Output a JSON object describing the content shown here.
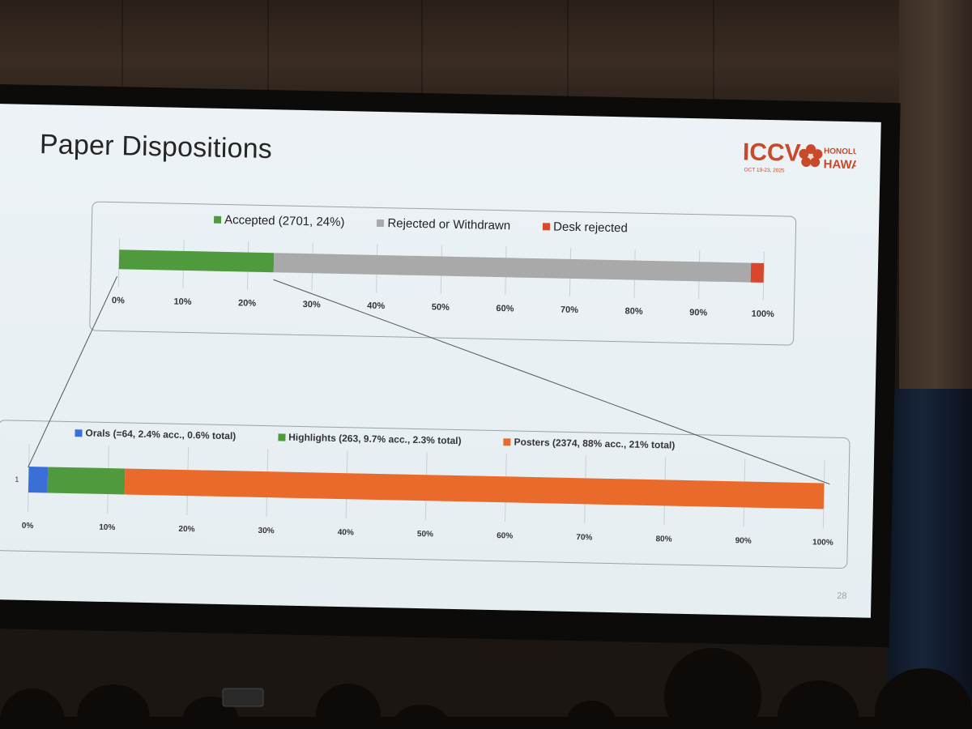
{
  "slide": {
    "title": "Paper Dispositions",
    "page_number": "28",
    "logo": {
      "acronym": "ICCV",
      "dates": "OCT 19-23, 2025",
      "city": "HONOLULU",
      "state": "HAWAII",
      "accent_color": "#c94a28"
    }
  },
  "chart_data": [
    {
      "type": "bar",
      "orientation": "horizontal-stacked",
      "categories": [
        ""
      ],
      "series": [
        {
          "name": "Accepted (2701, 24%)",
          "values": [
            24
          ],
          "color": "#4f9a3d"
        },
        {
          "name": "Rejected or Withdrawn",
          "values": [
            74
          ],
          "color": "#a9a9a9"
        },
        {
          "name": "Desk rejected",
          "values": [
            2
          ],
          "color": "#d8462b"
        }
      ],
      "xlim": [
        0,
        100
      ],
      "xticks": [
        "0%",
        "10%",
        "20%",
        "30%",
        "40%",
        "50%",
        "60%",
        "70%",
        "80%",
        "90%",
        "100%"
      ],
      "grid": true,
      "legend": "top"
    },
    {
      "type": "bar",
      "orientation": "horizontal-stacked",
      "categories": [
        "1"
      ],
      "series": [
        {
          "name": "Orals (=64, 2.4% acc., 0.6% total)",
          "values": [
            2.4
          ],
          "color": "#3a6fd8"
        },
        {
          "name": "Highlights (263, 9.7% acc., 2.3% total)",
          "values": [
            9.7
          ],
          "color": "#4f9a3d"
        },
        {
          "name": "Posters (2374, 88% acc., 21% total)",
          "values": [
            87.9
          ],
          "color": "#ea6a2c"
        }
      ],
      "xlim": [
        0,
        100
      ],
      "xticks": [
        "0%",
        "10%",
        "20%",
        "30%",
        "40%",
        "50%",
        "60%",
        "70%",
        "80%",
        "90%",
        "100%"
      ],
      "grid": true,
      "legend": "top"
    }
  ]
}
